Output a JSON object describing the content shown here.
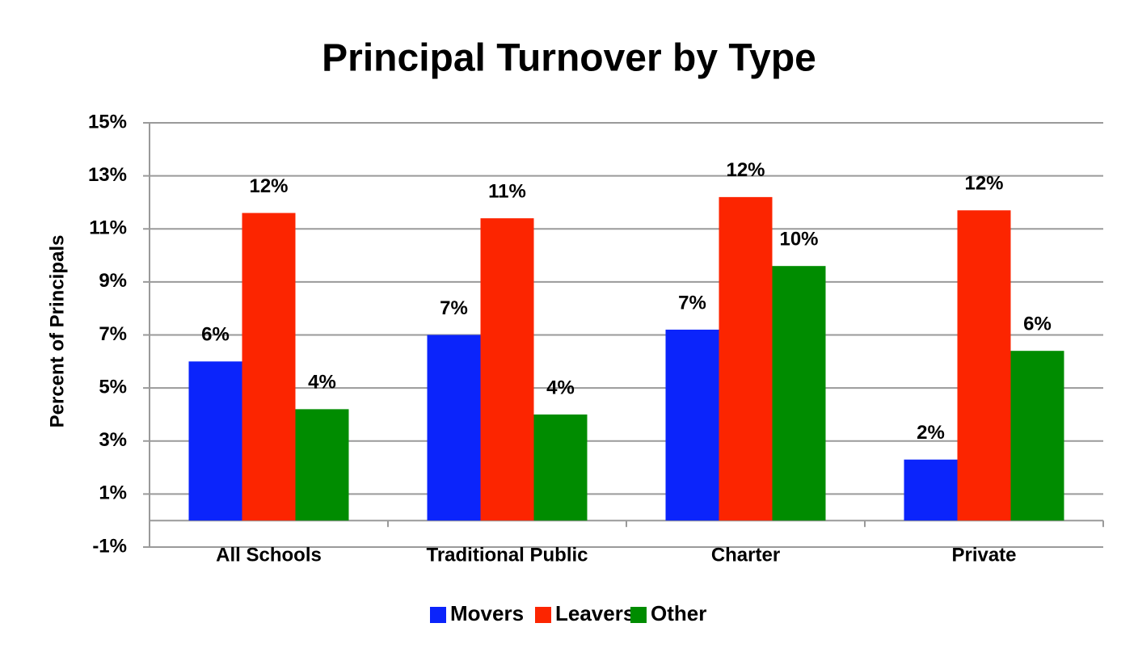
{
  "chart_data": {
    "type": "bar",
    "title": "Principal Turnover by Type",
    "y_label": "Percent of Principals",
    "categories": [
      "All Schools",
      "Traditional Public",
      "Charter",
      "Private"
    ],
    "series": [
      {
        "name": "Movers",
        "color": "#0b24fb",
        "values": [
          6.0,
          7.0,
          7.2,
          2.3
        ],
        "value_labels": [
          "6%",
          "7%",
          "7%",
          "2%"
        ]
      },
      {
        "name": "Leavers",
        "color": "#fc2500",
        "values": [
          11.6,
          11.4,
          12.2,
          11.7
        ],
        "value_labels": [
          "12%",
          "11%",
          "12%",
          "12%"
        ]
      },
      {
        "name": "Other",
        "color": "#008c00",
        "values": [
          4.2,
          4.0,
          9.6,
          6.4
        ],
        "value_labels": [
          "4%",
          "4%",
          "10%",
          "6%"
        ]
      }
    ],
    "ylim": [
      -1,
      15
    ],
    "yticks": [
      {
        "value": -1,
        "label": "-1%"
      },
      {
        "value": 1,
        "label": "1%"
      },
      {
        "value": 3,
        "label": "3%"
      },
      {
        "value": 5,
        "label": "5%"
      },
      {
        "value": 7,
        "label": "7%"
      },
      {
        "value": 9,
        "label": "9%"
      },
      {
        "value": 11,
        "label": "11%"
      },
      {
        "value": 13,
        "label": "13%"
      },
      {
        "value": 15,
        "label": "15%"
      }
    ],
    "grid": true,
    "legend": "bottom"
  }
}
